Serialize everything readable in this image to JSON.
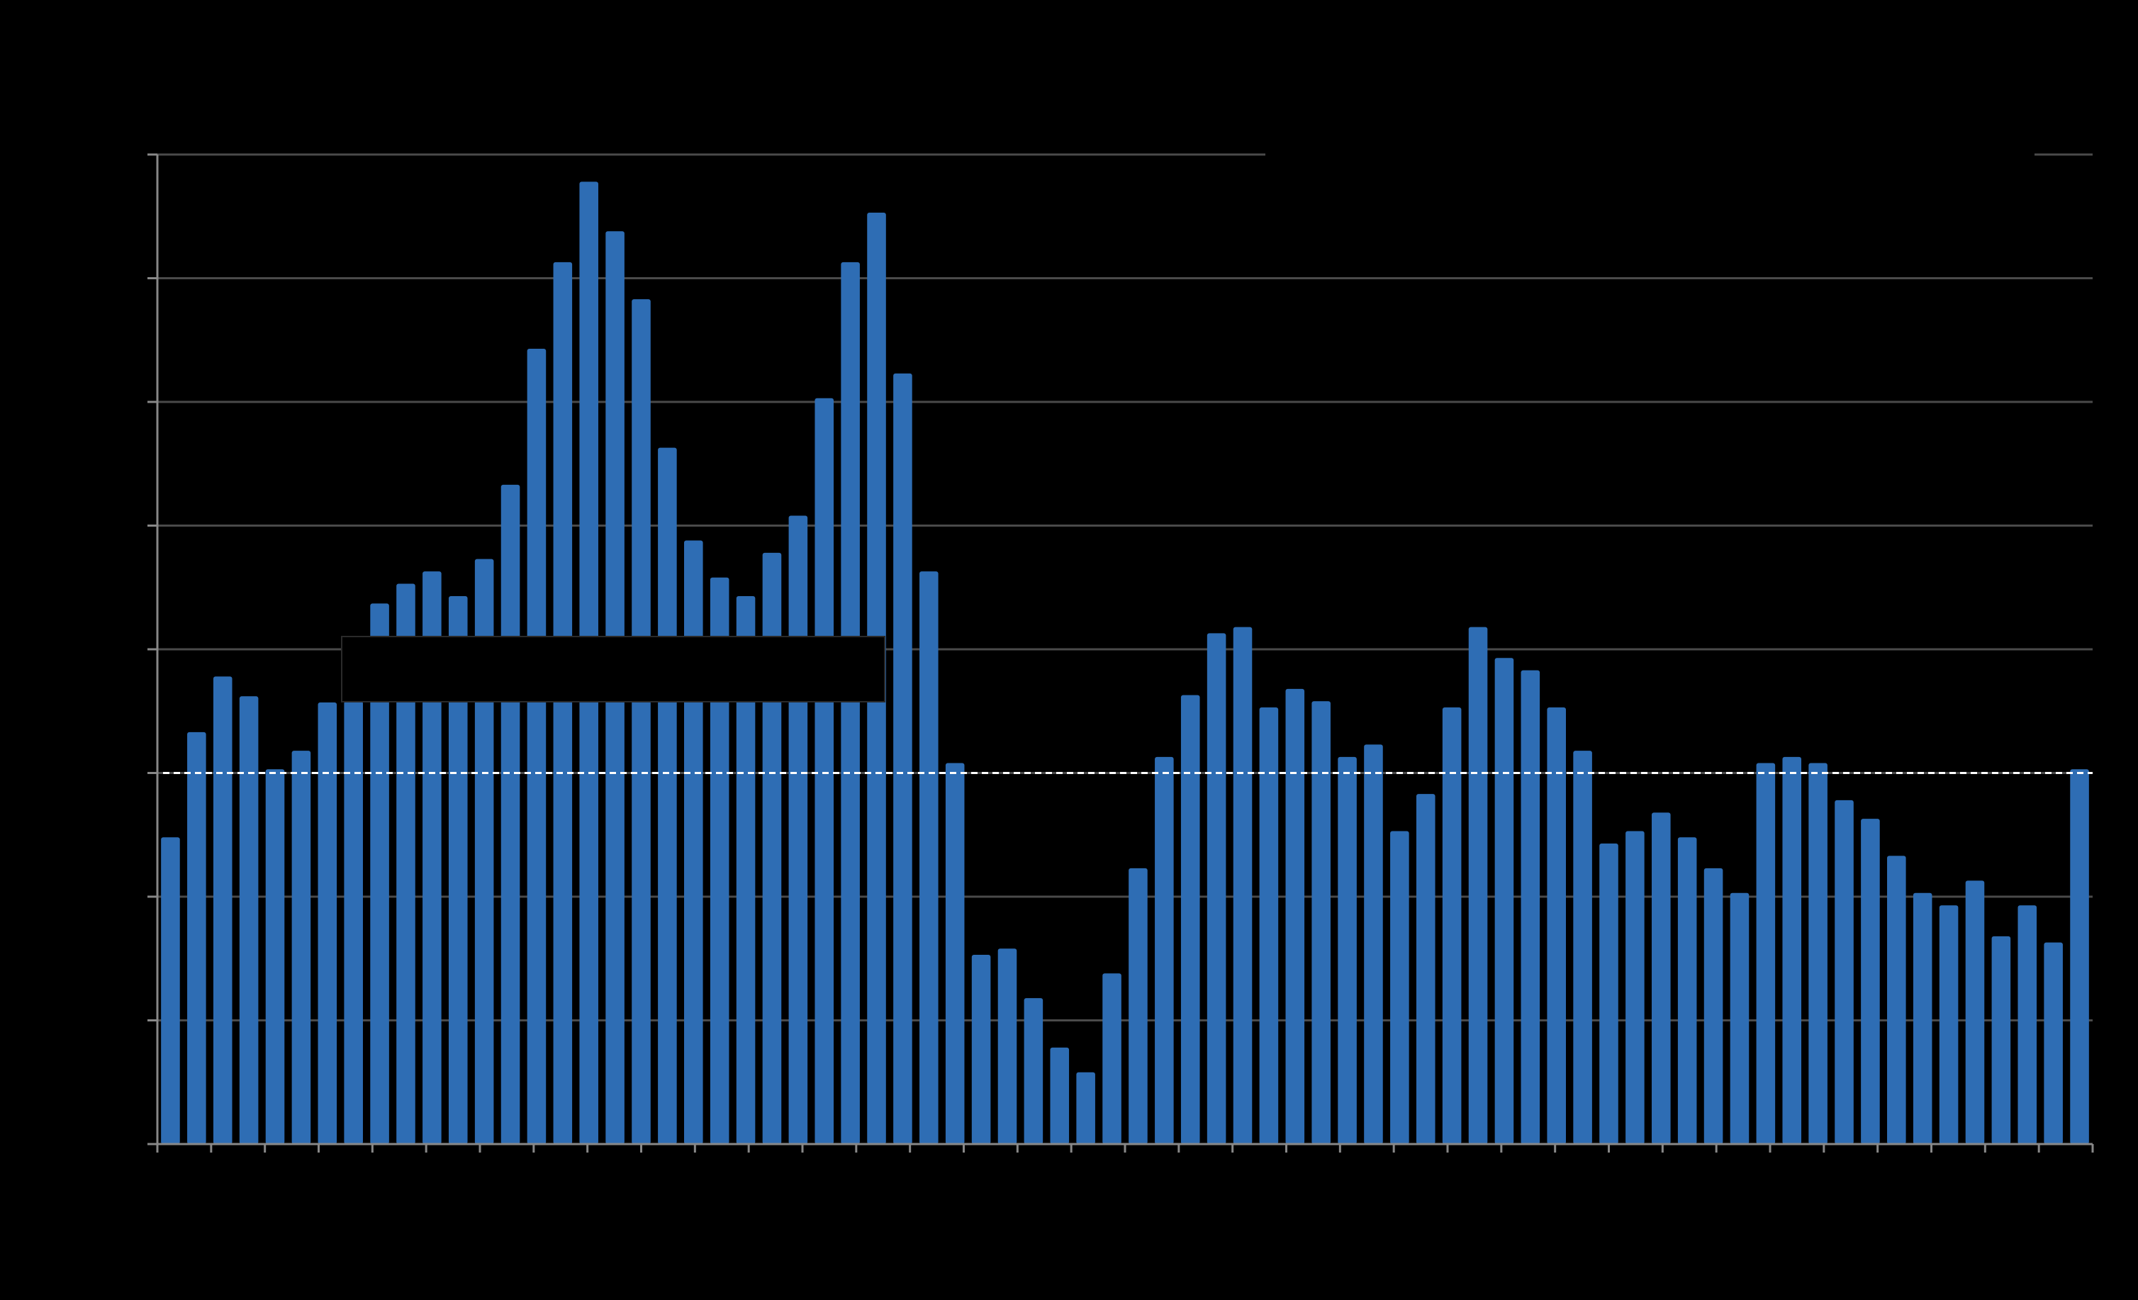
{
  "chart_data": {
    "type": "bar",
    "title": "",
    "xlabel": "",
    "ylabel": "",
    "ylim": [
      0,
      8
    ],
    "y_ticks": [
      0,
      1,
      2,
      3,
      4,
      5,
      6,
      7,
      8
    ],
    "x_tick_count": 37,
    "grid": true,
    "legend": "none",
    "reference_line": {
      "value": 3,
      "style": "dashed",
      "color": "#ffffff"
    },
    "bar_color": "#2e6db4",
    "grid_color": "#4a4a4a",
    "axis_color": "#888888",
    "background": "#000000",
    "series": [
      {
        "values": [
          2.48,
          3.33,
          3.78,
          3.62,
          3.03,
          3.18,
          3.57,
          3.58,
          4.37,
          4.53,
          4.63,
          4.43,
          4.73,
          5.33,
          6.43,
          7.13,
          7.78,
          7.38,
          6.83,
          5.63,
          4.88,
          4.58,
          4.43,
          4.78,
          5.08,
          6.03,
          7.13,
          7.53,
          6.23,
          4.63,
          3.08,
          1.53,
          1.58,
          1.18,
          0.78,
          0.58,
          1.38,
          2.23,
          3.13,
          3.63,
          4.13,
          4.18,
          3.53,
          3.68,
          3.58,
          3.13,
          3.23,
          2.53,
          2.83,
          3.53,
          4.18,
          3.93,
          3.83,
          3.53,
          3.18,
          2.43,
          2.53,
          2.68,
          2.48,
          2.23,
          2.03,
          3.08,
          3.13,
          3.08,
          2.78,
          2.63,
          2.33,
          2.03,
          1.93,
          2.13,
          1.68,
          1.93,
          1.63,
          3.03
        ]
      }
    ]
  }
}
